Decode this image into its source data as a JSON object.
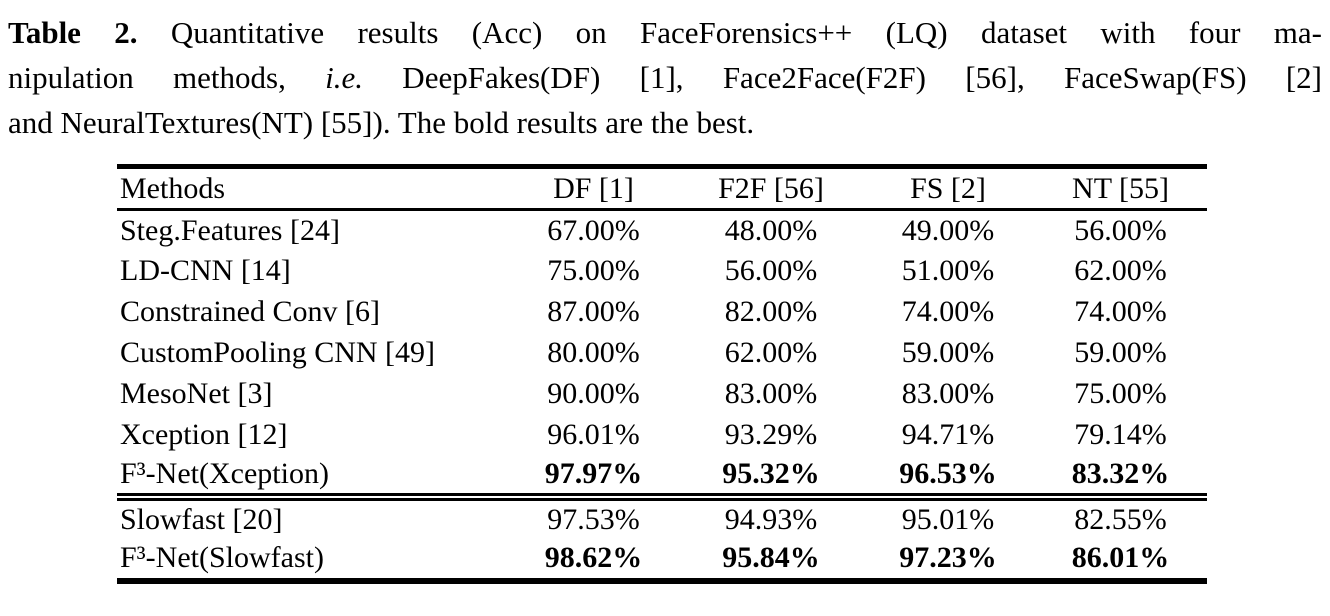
{
  "caption": {
    "line1_bold": "Table 2.",
    "line1_rest": " Quantitative results (Acc) on FaceForensics++ (LQ) dataset with four ma-",
    "line2_pre": "nipulation methods, ",
    "line2_italic": "i.e.",
    "line2_post": " DeepFakes(DF) [1], Face2Face(F2F) [56], FaceSwap(FS) [2]",
    "line3": "and NeuralTextures(NT) [55]). The bold results are the best."
  },
  "table": {
    "columns": [
      "Methods",
      "DF [1]",
      "F2F [56]",
      "FS [2]",
      "NT [55]"
    ],
    "rows": [
      {
        "method": "Steg.Features [24]",
        "values": [
          "67.00%",
          "48.00%",
          "49.00%",
          "56.00%"
        ],
        "bold": false
      },
      {
        "method": "LD-CNN [14]",
        "values": [
          "75.00%",
          "56.00%",
          "51.00%",
          "62.00%"
        ],
        "bold": false
      },
      {
        "method": "Constrained Conv [6]",
        "values": [
          "87.00%",
          "82.00%",
          "74.00%",
          "74.00%"
        ],
        "bold": false
      },
      {
        "method": "CustomPooling CNN [49]",
        "values": [
          "80.00%",
          "62.00%",
          "59.00%",
          "59.00%"
        ],
        "bold": false
      },
      {
        "method": "MesoNet [3]",
        "values": [
          "90.00%",
          "83.00%",
          "83.00%",
          "75.00%"
        ],
        "bold": false
      },
      {
        "method": "Xception [12]",
        "values": [
          "96.01%",
          "93.29%",
          "94.71%",
          "79.14%"
        ],
        "bold": false
      },
      {
        "method": "F³-Net(Xception)",
        "values": [
          "97.97%",
          "95.32%",
          "96.53%",
          "83.32%"
        ],
        "bold": true
      },
      {
        "method": "Slowfast [20]",
        "values": [
          "97.53%",
          "94.93%",
          "95.01%",
          "82.55%"
        ],
        "bold": false
      },
      {
        "method": "F³-Net(Slowfast)",
        "values": [
          "98.62%",
          "95.84%",
          "97.23%",
          "86.01%"
        ],
        "bold": true
      }
    ]
  },
  "chart_data": {
    "type": "table",
    "title": "Table 2. Quantitative results (Acc) on FaceForensics++ (LQ) dataset with four manipulation methods",
    "columns": [
      "Methods",
      "DF [1]",
      "F2F [56]",
      "FS [2]",
      "NT [55]"
    ],
    "rows": [
      [
        "Steg.Features [24]",
        67.0,
        48.0,
        49.0,
        56.0
      ],
      [
        "LD-CNN [14]",
        75.0,
        56.0,
        51.0,
        62.0
      ],
      [
        "Constrained Conv [6]",
        87.0,
        82.0,
        74.0,
        74.0
      ],
      [
        "CustomPooling CNN [49]",
        80.0,
        62.0,
        59.0,
        59.0
      ],
      [
        "MesoNet [3]",
        90.0,
        83.0,
        83.0,
        75.0
      ],
      [
        "Xception [12]",
        96.01,
        93.29,
        94.71,
        79.14
      ],
      [
        "F³-Net(Xception)",
        97.97,
        95.32,
        96.53,
        83.32
      ],
      [
        "Slowfast [20]",
        97.53,
        94.93,
        95.01,
        82.55
      ],
      [
        "F³-Net(Slowfast)",
        98.62,
        95.84,
        97.23,
        86.01
      ]
    ],
    "units": "percent accuracy",
    "bold_best_rows": [
      "F³-Net(Xception)",
      "F³-Net(Slowfast)"
    ]
  }
}
